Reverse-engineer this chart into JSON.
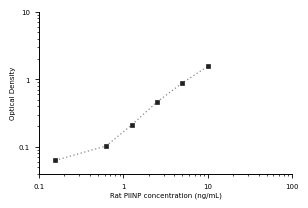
{
  "x": [
    0.156,
    0.625,
    1.25,
    2.5,
    5.0,
    10.0
  ],
  "y": [
    0.063,
    0.103,
    0.21,
    0.46,
    0.88,
    1.55
  ],
  "xlabel": "Rat PIINP concentration (ng/mL)",
  "ylabel": "Optical Density",
  "xlim": [
    0.1,
    100
  ],
  "ylim": [
    0.04,
    10
  ],
  "marker": "s",
  "marker_color": "#222222",
  "marker_size": 3,
  "line_color": "#888888",
  "x_ticks": [
    0.1,
    1,
    10,
    100
  ],
  "x_tick_labels": [
    "0.1",
    "1",
    "10",
    "100"
  ],
  "y_ticks": [
    0.1,
    1,
    10
  ],
  "y_tick_labels": [
    "0.1",
    "1",
    "10"
  ],
  "background": "#ffffff",
  "label_fontsize": 5,
  "tick_fontsize": 5
}
